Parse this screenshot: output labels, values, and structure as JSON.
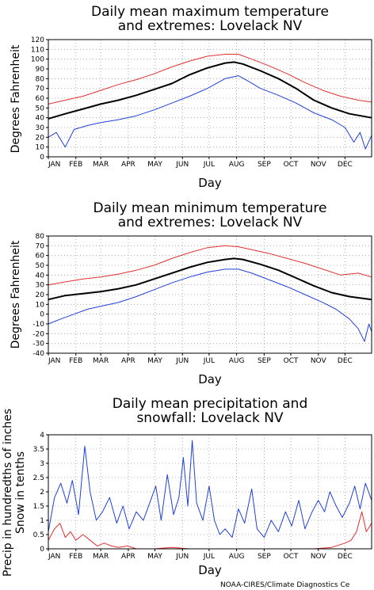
{
  "credit": "NOAA-CIRES/Climate Diagnostics Ce",
  "colors": {
    "mean": "#000000",
    "max_extreme": "#e03030",
    "min_extreme": "#2040d8",
    "snow": "#e03030",
    "precip": "#2040d8"
  },
  "chart_data": [
    {
      "type": "line",
      "title_lines": [
        "Daily mean maximum temperature",
        "and extremes: Lovelack NV"
      ],
      "xlabel": "Day",
      "ylabel": "Degrees Fahrenheit",
      "ylim": [
        0,
        120
      ],
      "yticks": [
        0,
        10,
        20,
        30,
        40,
        50,
        60,
        70,
        80,
        90,
        100,
        110,
        120
      ],
      "xlim": [
        1,
        365
      ],
      "month_labels": [
        "JAN",
        "FEB",
        "MAR",
        "APR",
        "MAY",
        "JUN",
        "JUL",
        "AUG",
        "SEP",
        "OCT",
        "NOV",
        "DEC"
      ],
      "month_days": [
        1,
        32,
        60,
        91,
        121,
        152,
        182,
        213,
        244,
        274,
        305,
        335
      ],
      "grid": true,
      "series": [
        {
          "color": "#e03030",
          "points": [
            [
              1,
              54
            ],
            [
              20,
              58
            ],
            [
              40,
              62
            ],
            [
              60,
              68
            ],
            [
              80,
              74
            ],
            [
              100,
              79
            ],
            [
              120,
              85
            ],
            [
              140,
              92
            ],
            [
              160,
              98
            ],
            [
              180,
              103
            ],
            [
              200,
              105
            ],
            [
              215,
              105
            ],
            [
              230,
              100
            ],
            [
              250,
              93
            ],
            [
              270,
              85
            ],
            [
              290,
              76
            ],
            [
              310,
              68
            ],
            [
              330,
              62
            ],
            [
              350,
              58
            ],
            [
              365,
              56
            ]
          ]
        },
        {
          "color": "#000000",
          "points": [
            [
              1,
              39
            ],
            [
              20,
              44
            ],
            [
              40,
              49
            ],
            [
              60,
              54
            ],
            [
              80,
              58
            ],
            [
              100,
              63
            ],
            [
              120,
              69
            ],
            [
              140,
              75
            ],
            [
              160,
              84
            ],
            [
              180,
              91
            ],
            [
              200,
              96
            ],
            [
              210,
              97
            ],
            [
              220,
              95
            ],
            [
              240,
              88
            ],
            [
              260,
              80
            ],
            [
              280,
              70
            ],
            [
              300,
              58
            ],
            [
              320,
              50
            ],
            [
              340,
              44
            ],
            [
              365,
              40
            ]
          ]
        },
        {
          "color": "#2040d8",
          "points": [
            [
              1,
              20
            ],
            [
              10,
              25
            ],
            [
              20,
              10
            ],
            [
              30,
              28
            ],
            [
              45,
              32
            ],
            [
              60,
              35
            ],
            [
              80,
              38
            ],
            [
              100,
              42
            ],
            [
              120,
              48
            ],
            [
              140,
              55
            ],
            [
              160,
              62
            ],
            [
              180,
              70
            ],
            [
              200,
              80
            ],
            [
              215,
              83
            ],
            [
              225,
              78
            ],
            [
              240,
              70
            ],
            [
              260,
              63
            ],
            [
              280,
              55
            ],
            [
              300,
              45
            ],
            [
              320,
              38
            ],
            [
              335,
              30
            ],
            [
              345,
              15
            ],
            [
              352,
              25
            ],
            [
              358,
              8
            ],
            [
              365,
              22
            ]
          ]
        }
      ]
    },
    {
      "type": "line",
      "title_lines": [
        "Daily mean minimum temperature",
        "and extremes: Lovelack NV"
      ],
      "xlabel": "Day",
      "ylabel": "Degrees Fahrenheit",
      "ylim": [
        -40,
        80
      ],
      "yticks": [
        -40,
        -30,
        -20,
        -10,
        0,
        10,
        20,
        30,
        40,
        50,
        60,
        70,
        80
      ],
      "xlim": [
        1,
        365
      ],
      "month_labels": [
        "JAN",
        "FEB",
        "MAR",
        "APR",
        "MAY",
        "JUN",
        "JUL",
        "AUG",
        "SEP",
        "OCT",
        "NOV",
        "DEC"
      ],
      "month_days": [
        1,
        32,
        60,
        91,
        121,
        152,
        182,
        213,
        244,
        274,
        305,
        335
      ],
      "grid": true,
      "series": [
        {
          "color": "#e03030",
          "points": [
            [
              1,
              30
            ],
            [
              20,
              33
            ],
            [
              40,
              36
            ],
            [
              60,
              38
            ],
            [
              80,
              41
            ],
            [
              100,
              45
            ],
            [
              120,
              50
            ],
            [
              140,
              57
            ],
            [
              160,
              63
            ],
            [
              180,
              68
            ],
            [
              200,
              70
            ],
            [
              215,
              69
            ],
            [
              230,
              66
            ],
            [
              250,
              62
            ],
            [
              270,
              57
            ],
            [
              290,
              52
            ],
            [
              310,
              46
            ],
            [
              330,
              40
            ],
            [
              350,
              42
            ],
            [
              365,
              38
            ]
          ]
        },
        {
          "color": "#000000",
          "points": [
            [
              1,
              15
            ],
            [
              20,
              19
            ],
            [
              40,
              21
            ],
            [
              60,
              23
            ],
            [
              80,
              26
            ],
            [
              100,
              30
            ],
            [
              120,
              36
            ],
            [
              140,
              42
            ],
            [
              160,
              48
            ],
            [
              180,
              53
            ],
            [
              200,
              56
            ],
            [
              210,
              57
            ],
            [
              220,
              56
            ],
            [
              240,
              51
            ],
            [
              260,
              45
            ],
            [
              280,
              37
            ],
            [
              300,
              29
            ],
            [
              320,
              22
            ],
            [
              340,
              18
            ],
            [
              365,
              15
            ]
          ]
        },
        {
          "color": "#2040d8",
          "points": [
            [
              1,
              -10
            ],
            [
              15,
              -5
            ],
            [
              30,
              0
            ],
            [
              45,
              5
            ],
            [
              60,
              8
            ],
            [
              80,
              12
            ],
            [
              100,
              18
            ],
            [
              120,
              25
            ],
            [
              140,
              32
            ],
            [
              160,
              38
            ],
            [
              180,
              43
            ],
            [
              200,
              46
            ],
            [
              215,
              46
            ],
            [
              230,
              42
            ],
            [
              250,
              35
            ],
            [
              270,
              28
            ],
            [
              290,
              20
            ],
            [
              310,
              12
            ],
            [
              325,
              5
            ],
            [
              340,
              -5
            ],
            [
              350,
              -15
            ],
            [
              357,
              -28
            ],
            [
              362,
              -10
            ],
            [
              365,
              -18
            ]
          ]
        }
      ]
    },
    {
      "type": "line",
      "title_lines": [
        "Daily mean precipitation and",
        "snowfall: Lovelack NV"
      ],
      "xlabel": "Day",
      "ylabel_lines": [
        "Precip in hundredths of inches",
        "Snow in tenths"
      ],
      "ylim": [
        0,
        4
      ],
      "yticks": [
        0,
        0.5,
        1,
        1.5,
        2,
        2.5,
        3,
        3.5,
        4
      ],
      "xlim": [
        1,
        365
      ],
      "month_labels": [
        "JAN",
        "FEB",
        "MAR",
        "APR",
        "MAY",
        "JUN",
        "JUL",
        "AUG",
        "SEP",
        "OCT",
        "NOV",
        "DEC"
      ],
      "month_days": [
        1,
        32,
        60,
        91,
        121,
        152,
        182,
        213,
        244,
        274,
        305,
        335
      ],
      "grid": true,
      "series": [
        {
          "color": "#2040d8",
          "points": [
            [
              1,
              0.6
            ],
            [
              8,
              1.8
            ],
            [
              15,
              2.3
            ],
            [
              22,
              1.6
            ],
            [
              28,
              2.4
            ],
            [
              35,
              1.2
            ],
            [
              42,
              3.6
            ],
            [
              48,
              2.0
            ],
            [
              55,
              1.0
            ],
            [
              62,
              1.3
            ],
            [
              70,
              1.8
            ],
            [
              78,
              0.9
            ],
            [
              85,
              1.5
            ],
            [
              92,
              0.7
            ],
            [
              100,
              1.3
            ],
            [
              108,
              1.0
            ],
            [
              115,
              1.6
            ],
            [
              122,
              2.2
            ],
            [
              128,
              1.0
            ],
            [
              135,
              2.6
            ],
            [
              142,
              1.2
            ],
            [
              148,
              1.8
            ],
            [
              153,
              3.2
            ],
            [
              158,
              1.5
            ],
            [
              163,
              3.8
            ],
            [
              168,
              1.6
            ],
            [
              175,
              1.0
            ],
            [
              182,
              2.2
            ],
            [
              188,
              1.0
            ],
            [
              194,
              0.5
            ],
            [
              200,
              0.7
            ],
            [
              208,
              0.4
            ],
            [
              215,
              1.4
            ],
            [
              222,
              0.9
            ],
            [
              230,
              2.1
            ],
            [
              236,
              0.7
            ],
            [
              244,
              0.4
            ],
            [
              252,
              1.0
            ],
            [
              260,
              0.6
            ],
            [
              268,
              1.3
            ],
            [
              275,
              0.8
            ],
            [
              283,
              1.7
            ],
            [
              290,
              0.7
            ],
            [
              298,
              1.3
            ],
            [
              305,
              1.7
            ],
            [
              312,
              1.3
            ],
            [
              318,
              2.0
            ],
            [
              325,
              1.5
            ],
            [
              332,
              1.1
            ],
            [
              340,
              1.6
            ],
            [
              346,
              2.2
            ],
            [
              352,
              1.4
            ],
            [
              358,
              2.3
            ],
            [
              365,
              1.7
            ]
          ]
        },
        {
          "color": "#e03030",
          "points": [
            [
              1,
              0.3
            ],
            [
              8,
              0.7
            ],
            [
              14,
              0.9
            ],
            [
              20,
              0.4
            ],
            [
              26,
              0.6
            ],
            [
              32,
              0.3
            ],
            [
              40,
              0.5
            ],
            [
              48,
              0.3
            ],
            [
              56,
              0.1
            ],
            [
              64,
              0.2
            ],
            [
              72,
              0.1
            ],
            [
              80,
              0.05
            ],
            [
              90,
              0.1
            ],
            [
              100,
              0.0
            ],
            [
              120,
              0.0
            ],
            [
              140,
              0.05
            ],
            [
              160,
              0.0
            ],
            [
              200,
              0.0
            ],
            [
              260,
              0.0
            ],
            [
              300,
              0.0
            ],
            [
              320,
              0.05
            ],
            [
              335,
              0.2
            ],
            [
              342,
              0.3
            ],
            [
              348,
              0.6
            ],
            [
              354,
              1.3
            ],
            [
              359,
              0.6
            ],
            [
              365,
              0.9
            ]
          ]
        }
      ]
    }
  ]
}
